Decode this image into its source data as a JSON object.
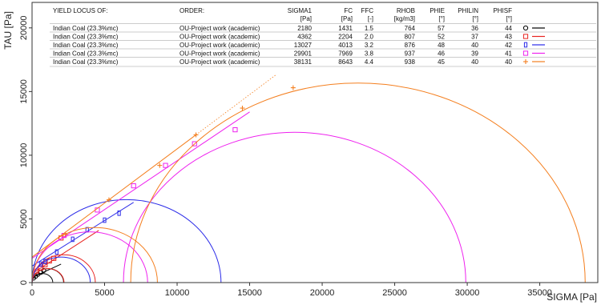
{
  "chart_data": {
    "type": "yield_locus",
    "xlabel": "SIGMA [Pa]",
    "ylabel": "TAU [Pa]",
    "xlim": [
      0,
      39000
    ],
    "ylim": [
      0,
      22000
    ],
    "xticks": [
      0,
      5000,
      10000,
      15000,
      20000,
      25000,
      30000,
      35000
    ],
    "yticks": [
      0,
      5000,
      10000,
      15000,
      20000
    ],
    "table": {
      "headers": [
        "YIELD LOCUS OF:",
        "ORDER:",
        "SIGMA1",
        "FC",
        "FFC",
        "RHOB",
        "PHIE",
        "PHILIN",
        "PHISF"
      ],
      "units": [
        "",
        "",
        "[Pa]",
        "[Pa]",
        "[-]",
        "[kg/m3]",
        "[°]",
        "[°]",
        "[°]"
      ],
      "rows": [
        {
          "name": "Indian Coal (23.3%mc)",
          "order": "OU-Project work (academic)",
          "sigma1": "2180",
          "fc": "1431",
          "ffc": "1.5",
          "rhob": "764",
          "phie": "57",
          "philin": "36",
          "phisf": "44",
          "color": "#000000",
          "marker": "circle"
        },
        {
          "name": "Indian Coal (23.3%mc)",
          "order": "OU-Project work (academic)",
          "sigma1": "4362",
          "fc": "2204",
          "ffc": "2.0",
          "rhob": "807",
          "phie": "52",
          "philin": "37",
          "phisf": "43",
          "color": "#e8231f",
          "marker": "square"
        },
        {
          "name": "Indian Coal (23.3%mc)",
          "order": "OU-Project work (academic)",
          "sigma1": "13027",
          "fc": "4013",
          "ffc": "3.2",
          "rhob": "876",
          "phie": "48",
          "philin": "40",
          "phisf": "42",
          "color": "#2b2be8",
          "marker": "rect"
        },
        {
          "name": "Indian Coal (23.3%mc)",
          "order": "OU-Project work (academic)",
          "sigma1": "29901",
          "fc": "7969",
          "ffc": "3.8",
          "rhob": "937",
          "phie": "46",
          "philin": "39",
          "phisf": "41",
          "color": "#ee22ee",
          "marker": "square"
        },
        {
          "name": "Indian Coal (23.3%mc)",
          "order": "OU-Project work (academic)",
          "sigma1": "38131",
          "fc": "8643",
          "ffc": "4.4",
          "rhob": "938",
          "phie": "45",
          "philin": "40",
          "phisf": "40",
          "color": "#f47f1f",
          "marker": "plus"
        }
      ]
    },
    "series": [
      {
        "color": "#000000",
        "marker": "circle",
        "circles": [
          [
            0,
            1431
          ],
          [
            0,
            2180
          ]
        ],
        "locus": [
          [
            0,
            400
          ],
          [
            2000,
            1450
          ]
        ],
        "points": [
          [
            100,
            350
          ],
          [
            250,
            500
          ],
          [
            400,
            650
          ],
          [
            600,
            800
          ],
          [
            800,
            950
          ]
        ]
      },
      {
        "color": "#e8231f",
        "marker": "square",
        "circles": [
          [
            0,
            2204
          ],
          [
            0,
            4362
          ]
        ],
        "locus": [
          [
            0,
            700
          ],
          [
            4600,
            4100
          ]
        ],
        "points": [
          [
            300,
            900
          ],
          [
            600,
            1150
          ],
          [
            900,
            1400
          ],
          [
            1200,
            1700
          ],
          [
            1500,
            1900
          ],
          [
            2000,
            3500
          ]
        ]
      },
      {
        "color": "#2b2be8",
        "marker": "rect",
        "circles": [
          [
            0,
            4013
          ],
          [
            0,
            13027
          ]
        ],
        "locus": [
          [
            0,
            1300
          ],
          [
            7000,
            6300
          ]
        ],
        "points": [
          [
            600,
            1450
          ],
          [
            900,
            1650
          ],
          [
            1700,
            2400
          ],
          [
            2800,
            3400
          ],
          [
            3800,
            4150
          ],
          [
            5000,
            4900
          ],
          [
            6000,
            5450
          ]
        ]
      },
      {
        "color": "#ee22ee",
        "marker": "square",
        "circles": [
          [
            0,
            7969
          ],
          [
            6300,
            29901
          ]
        ],
        "locus": [
          [
            0,
            1900
          ],
          [
            15000,
            13400
          ]
        ],
        "points": [
          [
            2200,
            3700
          ],
          [
            4500,
            5700
          ],
          [
            7000,
            7600
          ],
          [
            9200,
            9200
          ],
          [
            11200,
            10900
          ],
          [
            14000,
            12000
          ]
        ]
      },
      {
        "color": "#f47f1f",
        "marker": "plus",
        "circles": [
          [
            0,
            8643
          ],
          [
            6800,
            38131
          ]
        ],
        "locus": [
          [
            0,
            2000
          ],
          [
            11300,
            11600
          ]
        ],
        "extrapolation": [
          [
            11300,
            11600
          ],
          [
            16800,
            16300
          ]
        ],
        "points": [
          [
            2300,
            3800
          ],
          [
            5300,
            6500
          ],
          [
            8800,
            9200
          ],
          [
            11300,
            11600
          ],
          [
            14500,
            13700
          ],
          [
            18000,
            15300
          ]
        ]
      }
    ]
  }
}
